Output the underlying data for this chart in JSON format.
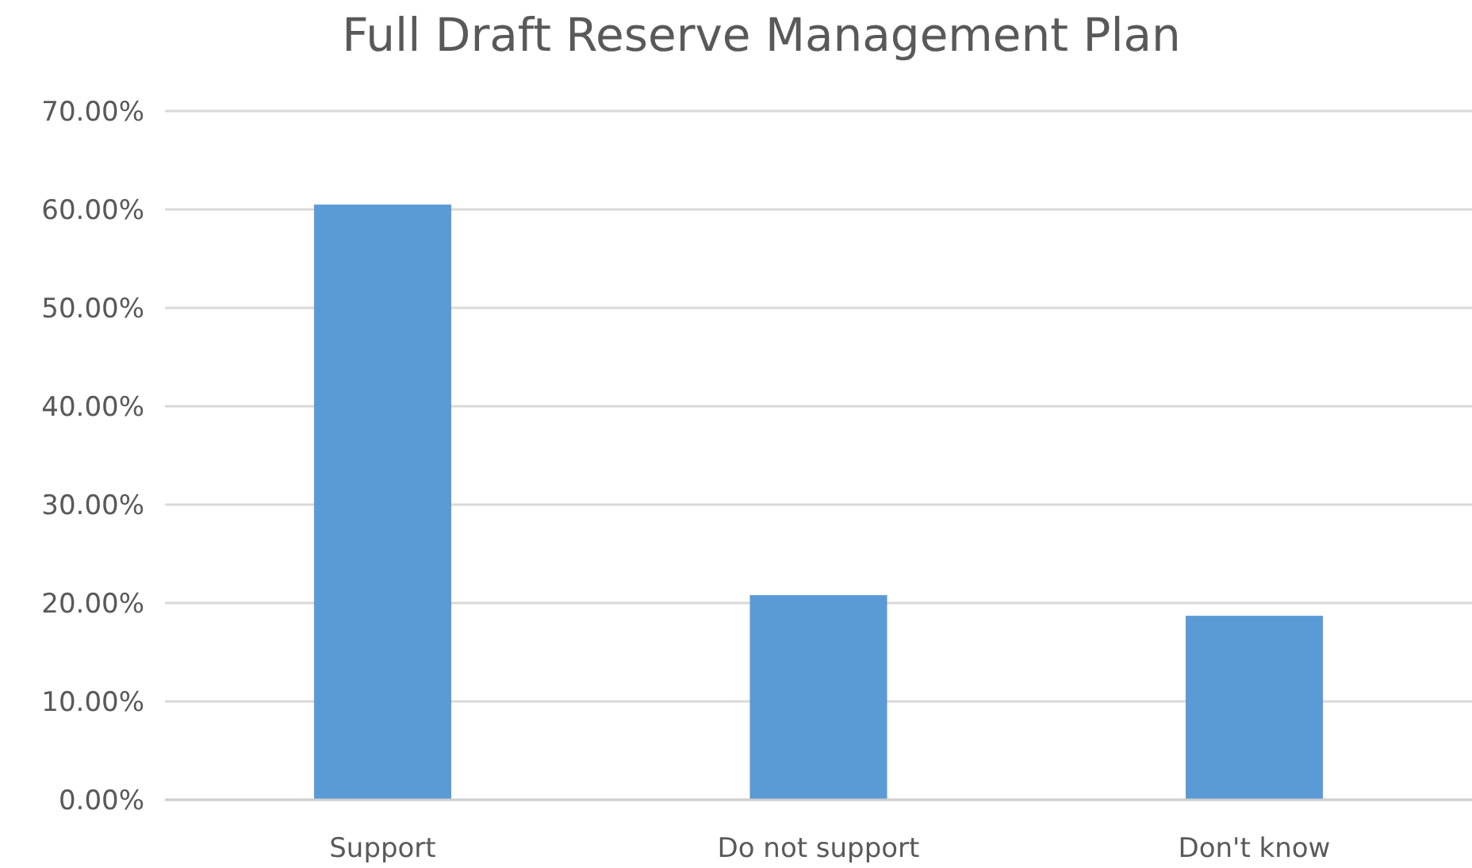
{
  "chart_data": {
    "type": "bar",
    "title": "Full Draft Reserve Management Plan",
    "categories": [
      "Support",
      "Do not support",
      "Don't know"
    ],
    "values": [
      60.5,
      20.8,
      18.7
    ],
    "color": "#5b9bd5",
    "ylim": [
      0,
      70
    ],
    "yticks": [
      {
        "value": 0,
        "label": "0.00%"
      },
      {
        "value": 10,
        "label": "10.00%"
      },
      {
        "value": 20,
        "label": "20.00%"
      },
      {
        "value": 30,
        "label": "30.00%"
      },
      {
        "value": 40,
        "label": "40.00%"
      },
      {
        "value": 50,
        "label": "50.00%"
      },
      {
        "value": 60,
        "label": "60.00%"
      },
      {
        "value": 70,
        "label": "70.00%"
      }
    ],
    "grid": true
  }
}
